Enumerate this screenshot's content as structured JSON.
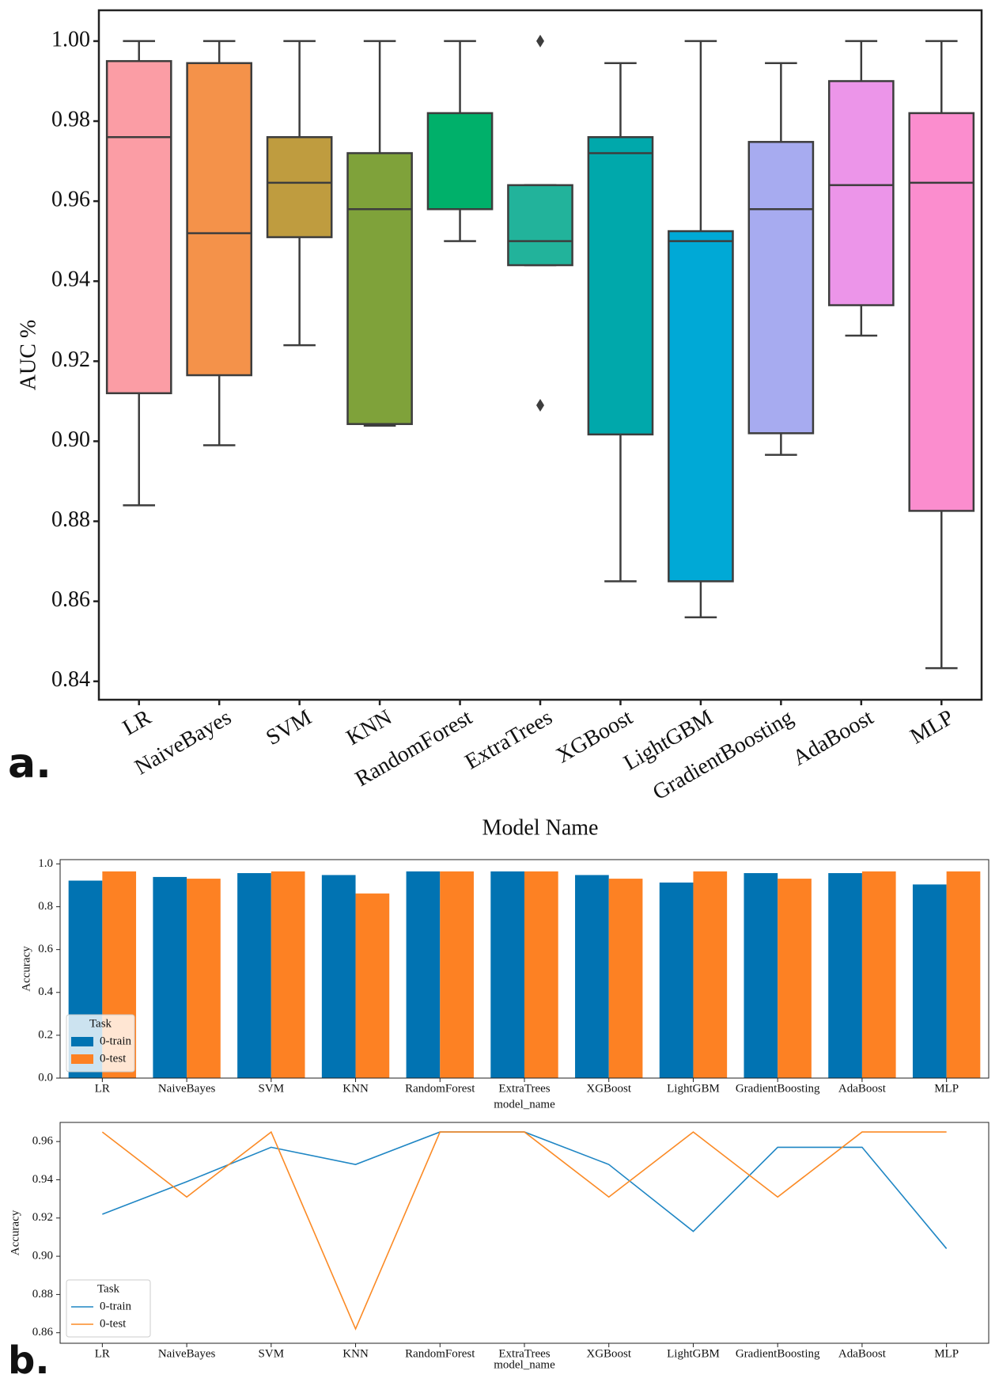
{
  "chart_data": [
    {
      "type": "box",
      "panel_label": "a.",
      "ylabel": "AUC %",
      "xlabel": "Model Name",
      "categories": [
        "LR",
        "NaiveBayes",
        "SVM",
        "KNN",
        "RandomForest",
        "ExtraTrees",
        "XGBoost",
        "LightGBM",
        "GradientBoosting",
        "AdaBoost",
        "MLP"
      ],
      "boxes": [
        {
          "color": "#fb9da5",
          "whislo": 0.884,
          "q1": 0.912,
          "med": 0.976,
          "q3": 0.995,
          "whishi": 1.0,
          "fliers": []
        },
        {
          "color": "#f4924a",
          "whislo": 0.899,
          "q1": 0.9165,
          "med": 0.952,
          "q3": 0.9945,
          "whishi": 1.0,
          "fliers": []
        },
        {
          "color": "#bf9c3f",
          "whislo": 0.924,
          "q1": 0.951,
          "med": 0.9646,
          "q3": 0.976,
          "whishi": 1.0,
          "fliers": []
        },
        {
          "color": "#7fa23a",
          "whislo": 0.9039,
          "q1": 0.9043,
          "med": 0.958,
          "q3": 0.972,
          "whishi": 1.0,
          "fliers": []
        },
        {
          "color": "#00b06a",
          "whislo": 0.95,
          "q1": 0.958,
          "med": 0.958,
          "q3": 0.982,
          "whishi": 1.0,
          "fliers": []
        },
        {
          "color": "#22b39b",
          "whislo": 0.944,
          "q1": 0.944,
          "med": 0.95,
          "q3": 0.964,
          "whishi": 0.964,
          "fliers": [
            1.0,
            0.909
          ]
        },
        {
          "color": "#00a8ab",
          "whislo": 0.865,
          "q1": 0.9017,
          "med": 0.972,
          "q3": 0.976,
          "whishi": 0.9945,
          "fliers": []
        },
        {
          "color": "#00a9d6",
          "whislo": 0.856,
          "q1": 0.865,
          "med": 0.95,
          "q3": 0.9525,
          "whishi": 1.0,
          "fliers": []
        },
        {
          "color": "#a7abf0",
          "whislo": 0.8966,
          "q1": 0.902,
          "med": 0.958,
          "q3": 0.9748,
          "whishi": 0.9945,
          "fliers": []
        },
        {
          "color": "#ec95e9",
          "whislo": 0.9264,
          "q1": 0.934,
          "med": 0.964,
          "q3": 0.99,
          "whishi": 1.0,
          "fliers": []
        },
        {
          "color": "#fb8dce",
          "whislo": 0.8433,
          "q1": 0.8826,
          "med": 0.9646,
          "q3": 0.982,
          "whishi": 1.0,
          "fliers": []
        }
      ],
      "ylim": [
        0.8354,
        1.0077
      ],
      "yticks": [
        0.84,
        0.86,
        0.88,
        {
          "value": 0.9,
          "label": "0.90"
        },
        0.92,
        0.94,
        0.96,
        0.98,
        {
          "value": 1.0,
          "label": "1.00"
        }
      ]
    },
    {
      "type": "bar",
      "ylabel": "Accuracy",
      "xlabel": "model_name",
      "legend_title": "Task",
      "legend": "lower left",
      "categories": [
        "LR",
        "NaiveBayes",
        "SVM",
        "KNN",
        "RandomForest",
        "ExtraTrees",
        "XGBoost",
        "LightGBM",
        "GradientBoosting",
        "AdaBoost",
        "MLP"
      ],
      "series": [
        {
          "name": "0-train",
          "color": "#0173b2",
          "values": [
            0.922,
            0.939,
            0.957,
            0.948,
            0.965,
            0.965,
            0.948,
            0.913,
            0.957,
            0.957,
            0.904
          ]
        },
        {
          "name": "0-test",
          "color": "#fd8123",
          "values": [
            0.965,
            0.931,
            0.965,
            0.862,
            0.965,
            0.965,
            0.931,
            0.965,
            0.931,
            0.965,
            0.965
          ]
        }
      ],
      "ylim": [
        0,
        1.02
      ],
      "yticks": [
        {
          "value": 0,
          "label": "0.0"
        },
        0.2,
        0.4,
        0.6,
        0.8,
        {
          "value": 1,
          "label": "1.0"
        }
      ]
    },
    {
      "type": "line",
      "panel_label": "b.",
      "ylabel": "Accuracy",
      "xlabel": "model_name",
      "legend_title": "Task",
      "legend": "lower left",
      "categories": [
        "LR",
        "NaiveBayes",
        "SVM",
        "KNN",
        "RandomForest",
        "ExtraTrees",
        "XGBoost",
        "LightGBM",
        "GradientBoosting",
        "AdaBoost",
        "MLP"
      ],
      "series": [
        {
          "name": "0-train",
          "color": "#1f86c4",
          "values": [
            0.922,
            0.939,
            0.957,
            0.948,
            0.965,
            0.965,
            0.948,
            0.913,
            0.957,
            0.957,
            0.904
          ]
        },
        {
          "name": "0-test",
          "color": "#fb8a25",
          "values": [
            0.965,
            0.931,
            0.965,
            0.862,
            0.965,
            0.965,
            0.931,
            0.965,
            0.931,
            0.965,
            0.965
          ]
        }
      ],
      "ylim": [
        0.8545,
        0.97
      ],
      "yticks": [
        0.86,
        0.88,
        {
          "value": 0.9,
          "label": "0.90"
        },
        0.92,
        0.94,
        0.96
      ]
    }
  ]
}
